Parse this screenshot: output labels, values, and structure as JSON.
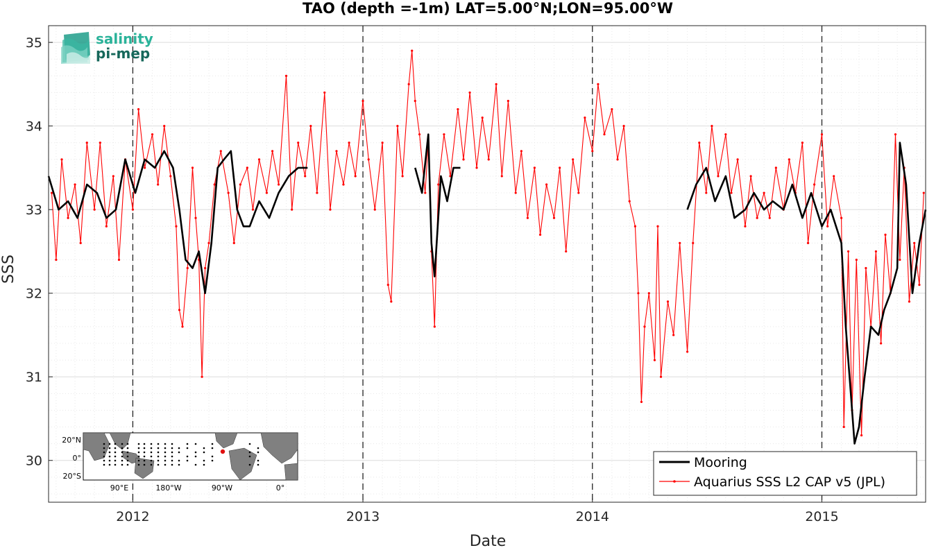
{
  "chart_data": {
    "type": "line",
    "title": "TAO (depth =-1m) LAT=5.00°N;LON=95.00°W",
    "xlabel": "Date",
    "ylabel": "SSS",
    "xlim": [
      "2011-08-20",
      "2015-06-15"
    ],
    "ylim": [
      29.5,
      35.2
    ],
    "x_ticks": [
      "2012",
      "2013",
      "2014",
      "2015"
    ],
    "y_ticks": [
      "30",
      "31",
      "32",
      "33",
      "34",
      "35"
    ],
    "grid": true,
    "legend_position": "bottom-right",
    "year_dividers": [
      "2012-01-01",
      "2013-01-01",
      "2014-01-01",
      "2015-01-01"
    ],
    "series": [
      {
        "name": "Mooring",
        "color": "#000000",
        "segments": [
          [
            [
              "2011-08-20",
              33.4
            ],
            [
              "2011-09-05",
              33.0
            ],
            [
              "2011-09-20",
              33.1
            ],
            [
              "2011-10-05",
              32.9
            ],
            [
              "2011-10-20",
              33.3
            ],
            [
              "2011-11-05",
              33.2
            ],
            [
              "2011-11-20",
              32.9
            ],
            [
              "2011-12-05",
              33.0
            ],
            [
              "2011-12-20",
              33.6
            ],
            [
              "2012-01-05",
              33.2
            ],
            [
              "2012-01-20",
              33.6
            ],
            [
              "2012-02-05",
              33.5
            ],
            [
              "2012-02-20",
              33.7
            ],
            [
              "2012-03-05",
              33.5
            ],
            [
              "2012-03-15",
              33.0
            ],
            [
              "2012-03-25",
              32.4
            ],
            [
              "2012-04-05",
              32.3
            ],
            [
              "2012-04-15",
              32.5
            ],
            [
              "2012-04-25",
              32.0
            ],
            [
              "2012-05-05",
              32.6
            ],
            [
              "2012-05-15",
              33.5
            ],
            [
              "2012-05-25",
              33.6
            ],
            [
              "2012-06-05",
              33.7
            ],
            [
              "2012-06-15",
              33.0
            ],
            [
              "2012-06-25",
              32.8
            ],
            [
              "2012-07-05",
              32.8
            ],
            [
              "2012-07-20",
              33.1
            ],
            [
              "2012-08-05",
              32.9
            ],
            [
              "2012-08-20",
              33.2
            ],
            [
              "2012-09-05",
              33.4
            ],
            [
              "2012-09-20",
              33.5
            ],
            [
              "2012-10-05",
              33.5
            ]
          ],
          [
            [
              "2013-03-25",
              33.5
            ],
            [
              "2013-04-05",
              33.2
            ],
            [
              "2013-04-15",
              33.9
            ],
            [
              "2013-04-20",
              32.6
            ],
            [
              "2013-04-25",
              32.2
            ],
            [
              "2013-05-05",
              33.4
            ],
            [
              "2013-05-15",
              33.1
            ],
            [
              "2013-05-25",
              33.5
            ],
            [
              "2013-06-05",
              33.5
            ]
          ],
          [
            [
              "2014-06-01",
              33.0
            ],
            [
              "2014-06-15",
              33.3
            ],
            [
              "2014-07-01",
              33.5
            ],
            [
              "2014-07-15",
              33.1
            ],
            [
              "2014-08-01",
              33.4
            ],
            [
              "2014-08-15",
              32.9
            ],
            [
              "2014-09-01",
              33.0
            ],
            [
              "2014-09-15",
              33.2
            ],
            [
              "2014-10-01",
              33.0
            ],
            [
              "2014-10-15",
              33.1
            ],
            [
              "2014-11-01",
              33.0
            ],
            [
              "2014-11-15",
              33.3
            ],
            [
              "2014-12-01",
              32.9
            ],
            [
              "2014-12-15",
              33.2
            ],
            [
              "2015-01-01",
              32.8
            ],
            [
              "2015-01-15",
              33.0
            ],
            [
              "2015-02-01",
              32.6
            ],
            [
              "2015-02-08",
              31.6
            ],
            [
              "2015-02-15",
              30.9
            ],
            [
              "2015-02-22",
              30.2
            ],
            [
              "2015-03-01",
              30.4
            ],
            [
              "2015-03-10",
              31.0
            ],
            [
              "2015-03-20",
              31.6
            ],
            [
              "2015-04-01",
              31.5
            ],
            [
              "2015-04-10",
              31.8
            ],
            [
              "2015-04-20",
              32.0
            ],
            [
              "2015-05-01",
              32.3
            ],
            [
              "2015-05-05",
              33.8
            ],
            [
              "2015-05-15",
              33.3
            ],
            [
              "2015-05-25",
              32.0
            ],
            [
              "2015-06-05",
              32.6
            ],
            [
              "2015-06-15",
              33.0
            ]
          ]
        ]
      },
      {
        "name": "Aquarius SSS L2 CAP v5 (JPL)",
        "color": "#ff0000",
        "points": [
          [
            "2011-08-25",
            33.2
          ],
          [
            "2011-09-01",
            32.4
          ],
          [
            "2011-09-10",
            33.6
          ],
          [
            "2011-09-20",
            32.9
          ],
          [
            "2011-10-01",
            33.3
          ],
          [
            "2011-10-10",
            32.6
          ],
          [
            "2011-10-20",
            33.8
          ],
          [
            "2011-11-01",
            33.0
          ],
          [
            "2011-11-10",
            33.8
          ],
          [
            "2011-11-20",
            32.8
          ],
          [
            "2011-12-01",
            33.4
          ],
          [
            "2011-12-10",
            32.4
          ],
          [
            "2011-12-20",
            33.6
          ],
          [
            "2012-01-01",
            33.0
          ],
          [
            "2012-01-10",
            34.2
          ],
          [
            "2012-01-20",
            33.5
          ],
          [
            "2012-02-01",
            33.9
          ],
          [
            "2012-02-10",
            33.3
          ],
          [
            "2012-02-20",
            34.0
          ],
          [
            "2012-03-01",
            33.4
          ],
          [
            "2012-03-10",
            32.8
          ],
          [
            "2012-03-15",
            31.8
          ],
          [
            "2012-03-20",
            31.6
          ],
          [
            "2012-03-28",
            32.3
          ],
          [
            "2012-04-05",
            33.5
          ],
          [
            "2012-04-10",
            32.9
          ],
          [
            "2012-04-15",
            32.4
          ],
          [
            "2012-04-20",
            31.0
          ],
          [
            "2012-04-25",
            32.3
          ],
          [
            "2012-05-01",
            32.6
          ],
          [
            "2012-05-10",
            33.3
          ],
          [
            "2012-05-20",
            33.7
          ],
          [
            "2012-06-01",
            33.2
          ],
          [
            "2012-06-10",
            32.6
          ],
          [
            "2012-06-20",
            33.3
          ],
          [
            "2012-07-01",
            33.5
          ],
          [
            "2012-07-10",
            33.0
          ],
          [
            "2012-07-20",
            33.6
          ],
          [
            "2012-08-01",
            33.2
          ],
          [
            "2012-08-10",
            33.7
          ],
          [
            "2012-08-20",
            33.3
          ],
          [
            "2012-09-01",
            34.6
          ],
          [
            "2012-09-10",
            33.0
          ],
          [
            "2012-09-20",
            33.8
          ],
          [
            "2012-10-01",
            33.4
          ],
          [
            "2012-10-10",
            34.0
          ],
          [
            "2012-10-20",
            33.2
          ],
          [
            "2012-11-01",
            34.4
          ],
          [
            "2012-11-10",
            33.0
          ],
          [
            "2012-11-20",
            33.7
          ],
          [
            "2012-12-01",
            33.3
          ],
          [
            "2012-12-10",
            33.8
          ],
          [
            "2012-12-20",
            33.4
          ],
          [
            "2013-01-01",
            34.3
          ],
          [
            "2013-01-10",
            33.6
          ],
          [
            "2013-01-20",
            33.0
          ],
          [
            "2013-02-01",
            33.8
          ],
          [
            "2013-02-10",
            32.1
          ],
          [
            "2013-02-15",
            31.9
          ],
          [
            "2013-02-25",
            34.0
          ],
          [
            "2013-03-05",
            33.4
          ],
          [
            "2013-03-15",
            34.5
          ],
          [
            "2013-03-20",
            34.9
          ],
          [
            "2013-03-25",
            34.3
          ],
          [
            "2013-04-01",
            33.9
          ],
          [
            "2013-04-10",
            33.2
          ],
          [
            "2013-04-15",
            33.8
          ],
          [
            "2013-04-20",
            32.5
          ],
          [
            "2013-04-25",
            31.6
          ],
          [
            "2013-05-01",
            33.3
          ],
          [
            "2013-05-10",
            33.9
          ],
          [
            "2013-05-20",
            33.4
          ],
          [
            "2013-06-01",
            34.2
          ],
          [
            "2013-06-10",
            33.6
          ],
          [
            "2013-06-20",
            34.4
          ],
          [
            "2013-07-01",
            33.5
          ],
          [
            "2013-07-10",
            34.1
          ],
          [
            "2013-07-20",
            33.6
          ],
          [
            "2013-08-01",
            34.5
          ],
          [
            "2013-08-10",
            33.4
          ],
          [
            "2013-08-20",
            34.3
          ],
          [
            "2013-09-01",
            33.2
          ],
          [
            "2013-09-10",
            33.7
          ],
          [
            "2013-09-20",
            32.9
          ],
          [
            "2013-10-01",
            33.5
          ],
          [
            "2013-10-10",
            32.7
          ],
          [
            "2013-10-20",
            33.3
          ],
          [
            "2013-11-01",
            32.9
          ],
          [
            "2013-11-10",
            33.5
          ],
          [
            "2013-11-20",
            32.5
          ],
          [
            "2013-12-01",
            33.6
          ],
          [
            "2013-12-10",
            33.2
          ],
          [
            "2013-12-20",
            34.1
          ],
          [
            "2014-01-01",
            33.7
          ],
          [
            "2014-01-10",
            34.5
          ],
          [
            "2014-01-20",
            33.9
          ],
          [
            "2014-02-01",
            34.2
          ],
          [
            "2014-02-10",
            33.6
          ],
          [
            "2014-02-20",
            34.0
          ],
          [
            "2014-03-01",
            33.1
          ],
          [
            "2014-03-10",
            32.8
          ],
          [
            "2014-03-15",
            32.0
          ],
          [
            "2014-03-20",
            30.7
          ],
          [
            "2014-03-25",
            31.6
          ],
          [
            "2014-04-01",
            32.0
          ],
          [
            "2014-04-10",
            31.2
          ],
          [
            "2014-04-15",
            32.8
          ],
          [
            "2014-04-20",
            31.0
          ],
          [
            "2014-05-01",
            31.9
          ],
          [
            "2014-05-10",
            31.5
          ],
          [
            "2014-05-20",
            32.6
          ],
          [
            "2014-06-01",
            31.3
          ],
          [
            "2014-06-10",
            32.6
          ],
          [
            "2014-06-20",
            33.8
          ],
          [
            "2014-07-01",
            33.2
          ],
          [
            "2014-07-10",
            34.0
          ],
          [
            "2014-07-20",
            33.4
          ],
          [
            "2014-08-01",
            33.9
          ],
          [
            "2014-08-10",
            33.2
          ],
          [
            "2014-08-20",
            33.6
          ],
          [
            "2014-09-01",
            32.8
          ],
          [
            "2014-09-10",
            33.4
          ],
          [
            "2014-09-20",
            32.9
          ],
          [
            "2014-10-01",
            33.2
          ],
          [
            "2014-10-10",
            32.9
          ],
          [
            "2014-10-20",
            33.5
          ],
          [
            "2014-11-01",
            33.0
          ],
          [
            "2014-11-10",
            33.6
          ],
          [
            "2014-11-20",
            33.2
          ],
          [
            "2014-12-01",
            33.8
          ],
          [
            "2014-12-10",
            32.6
          ],
          [
            "2014-12-20",
            33.3
          ],
          [
            "2015-01-01",
            33.9
          ],
          [
            "2015-01-10",
            32.8
          ],
          [
            "2015-01-20",
            33.4
          ],
          [
            "2015-02-01",
            32.9
          ],
          [
            "2015-02-05",
            30.4
          ],
          [
            "2015-02-12",
            32.5
          ],
          [
            "2015-02-18",
            30.6
          ],
          [
            "2015-02-25",
            32.4
          ],
          [
            "2015-03-05",
            30.3
          ],
          [
            "2015-03-12",
            32.3
          ],
          [
            "2015-03-20",
            31.6
          ],
          [
            "2015-03-28",
            32.5
          ],
          [
            "2015-04-05",
            31.4
          ],
          [
            "2015-04-12",
            32.7
          ],
          [
            "2015-04-20",
            32.0
          ],
          [
            "2015-04-28",
            33.9
          ],
          [
            "2015-05-05",
            32.4
          ],
          [
            "2015-05-12",
            33.5
          ],
          [
            "2015-05-20",
            31.9
          ],
          [
            "2015-05-28",
            32.6
          ],
          [
            "2015-06-05",
            32.1
          ],
          [
            "2015-06-12",
            33.2
          ]
        ]
      }
    ]
  },
  "legend": {
    "mooring": "Mooring",
    "aquarius": "Aquarius SSS L2 CAP v5 (JPL)"
  },
  "logo": {
    "line1": "salinity",
    "line2": "pi-mep"
  },
  "inset_map": {
    "lat_labels": [
      "20°N",
      "0°",
      "20°S"
    ],
    "lon_labels": [
      "90°E",
      "180°W",
      "90°W",
      "0°"
    ]
  }
}
